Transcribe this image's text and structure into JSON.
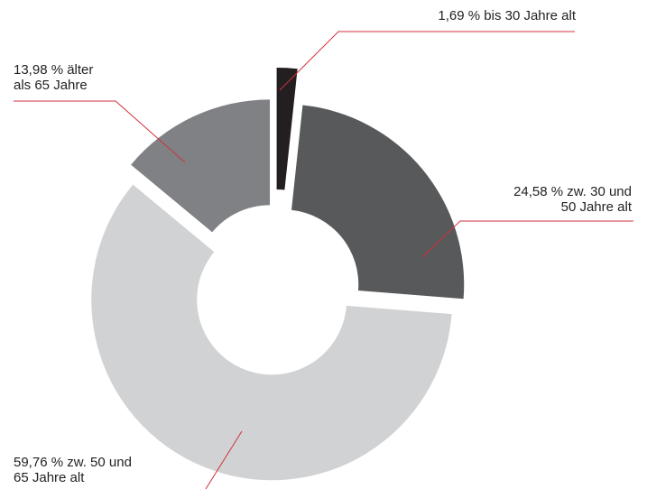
{
  "chart_data": {
    "type": "donut",
    "values": [
      1.69,
      24.58,
      59.76,
      13.98
    ],
    "value_labels": [
      [
        "1,69 % bis 30 Jahre alt"
      ],
      [
        "24,58 % zw. 30 und",
        "50 Jahre alt"
      ],
      [
        "59,76 % zw. 50 und",
        "65 Jahre alt"
      ],
      [
        "13,98 % älter",
        "als 65 Jahre"
      ]
    ],
    "colors": [
      "#231f20",
      "#58595b",
      "#d1d2d4",
      "#808184"
    ],
    "leader_color": "#d0313c"
  }
}
